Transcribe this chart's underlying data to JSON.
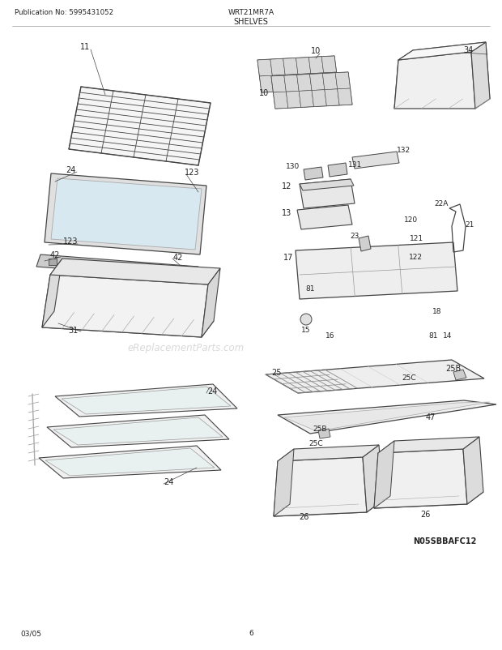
{
  "title": "SHELVES",
  "pub_no": "Publication No: 5995431052",
  "model": "WRT21MR7A",
  "footer_left": "03/05",
  "footer_center": "6",
  "watermark": "eReplacementParts.com",
  "catalog_no": "N05SBBAFC12",
  "bg_color": "#ffffff",
  "line_color": "#555555",
  "text_color": "#333333"
}
